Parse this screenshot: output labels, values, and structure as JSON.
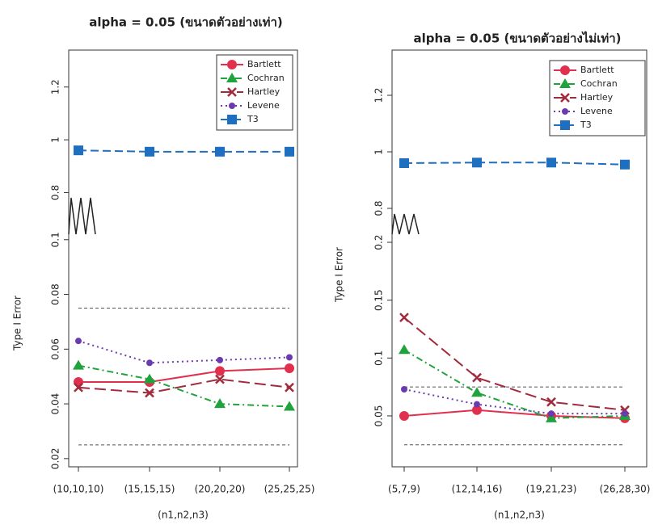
{
  "chart_data": [
    {
      "type": "line",
      "title": "alpha = 0.05 (ขนาดตัวอย่างเท่า)",
      "x_label": "(n1,n2,n3)",
      "y_label": "Type I Error",
      "categories": [
        "(10,10,10)",
        "(15,15,15)",
        "(20,20,20)",
        "(25,25,25)"
      ],
      "ylim": [
        0.017,
        0.102
      ],
      "yticks": [
        0.02,
        0.04,
        0.06,
        0.08,
        0.1
      ],
      "ylim_upper": [
        0.78,
        1.34
      ],
      "yticks_upper": [
        0.8,
        1.0,
        1.2
      ],
      "hlines": [
        0.025,
        0.075
      ],
      "series": [
        {
          "name": "Bartlett",
          "color": "#e0304e",
          "marker": "circle",
          "dash": "solid",
          "values": [
            0.048,
            0.048,
            0.052,
            0.053
          ]
        },
        {
          "name": "Cochran",
          "color": "#1fa33c",
          "marker": "triangle",
          "dash": "dashdot",
          "values": [
            0.054,
            0.049,
            0.04,
            0.039
          ]
        },
        {
          "name": "Hartley",
          "color": "#a12a3c",
          "marker": "cross",
          "dash": "longdash",
          "values": [
            0.046,
            0.044,
            0.049,
            0.046
          ]
        },
        {
          "name": "Levene",
          "color": "#6a3bb0",
          "marker": "dot",
          "dash": "dotted",
          "values": [
            0.063,
            0.055,
            0.056,
            0.057
          ]
        },
        {
          "name": "T3",
          "color": "#1f6fc0",
          "marker": "square",
          "dash": "dashed",
          "values": [
            0.96,
            0.955,
            0.955,
            0.955
          ]
        }
      ]
    },
    {
      "type": "line",
      "title": "alpha = 0.05 (ขนาดตัวอย่างไม่เท่า)",
      "x_label": "(n1,n2,n3)",
      "y_label": "Type I Error",
      "categories": [
        "(5,7,9)",
        "(12,14,16)",
        "(19,21,23)",
        "(26,28,30)"
      ],
      "ylim": [
        0.006,
        0.207
      ],
      "yticks": [
        0.05,
        0.1,
        0.15,
        0.2
      ],
      "ylim_upper": [
        0.78,
        1.36
      ],
      "yticks_upper": [
        0.8,
        1.0,
        1.2
      ],
      "hlines": [
        0.025,
        0.075
      ],
      "series": [
        {
          "name": "Bartlett",
          "color": "#e0304e",
          "marker": "circle",
          "dash": "solid",
          "values": [
            0.05,
            0.055,
            0.05,
            0.048
          ]
        },
        {
          "name": "Cochran",
          "color": "#1fa33c",
          "marker": "triangle",
          "dash": "dashdot",
          "values": [
            0.107,
            0.07,
            0.048,
            0.05
          ]
        },
        {
          "name": "Hartley",
          "color": "#a12a3c",
          "marker": "cross",
          "dash": "longdash",
          "values": [
            0.135,
            0.083,
            0.062,
            0.055
          ]
        },
        {
          "name": "Levene",
          "color": "#6a3bb0",
          "marker": "dot",
          "dash": "dotted",
          "values": [
            0.073,
            0.06,
            0.052,
            0.052
          ]
        },
        {
          "name": "T3",
          "color": "#1f6fc0",
          "marker": "square",
          "dash": "dashed",
          "values": [
            0.96,
            0.962,
            0.962,
            0.955
          ]
        }
      ]
    }
  ]
}
